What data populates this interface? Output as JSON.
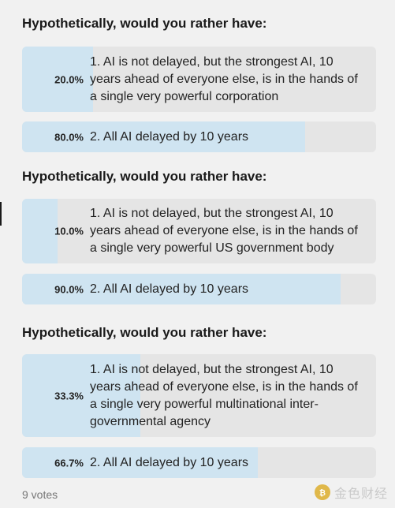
{
  "polls": [
    {
      "question": "Hypothetically, would you rather have:",
      "options": [
        {
          "percent": "20.0%",
          "fraction": 0.2,
          "text": "1. AI is not delayed, but the strongest AI, 10 years ahead of everyone else, is in the hands of a single very powerful corporation"
        },
        {
          "percent": "80.0%",
          "fraction": 0.8,
          "text": "2. All AI delayed by 10 years"
        }
      ]
    },
    {
      "question": "Hypothetically, would you rather have:",
      "options": [
        {
          "percent": "10.0%",
          "fraction": 0.1,
          "text": "1. AI is not delayed, but the strongest AI, 10 years ahead of everyone else, is in the hands of a single very powerful US government body"
        },
        {
          "percent": "90.0%",
          "fraction": 0.9,
          "text": "2. All AI delayed by 10 years"
        }
      ]
    },
    {
      "question": "Hypothetically, would you rather have:",
      "options": [
        {
          "percent": "33.3%",
          "fraction": 0.333,
          "text": "1. AI is not delayed, but the strongest AI, 10 years ahead of everyone else, is in the hands of a single very powerful multinational inter-governmental agency"
        },
        {
          "percent": "66.7%",
          "fraction": 0.667,
          "text": "2. All AI delayed by 10 years"
        }
      ]
    }
  ],
  "footer": {
    "votes": "9 votes"
  },
  "watermark": {
    "text": "金色财经",
    "icon": "bitcoin-logo-icon"
  },
  "colors": {
    "fill": "#cfe4f1",
    "track": "#e5e5e5",
    "background": "#f1f1f1"
  }
}
